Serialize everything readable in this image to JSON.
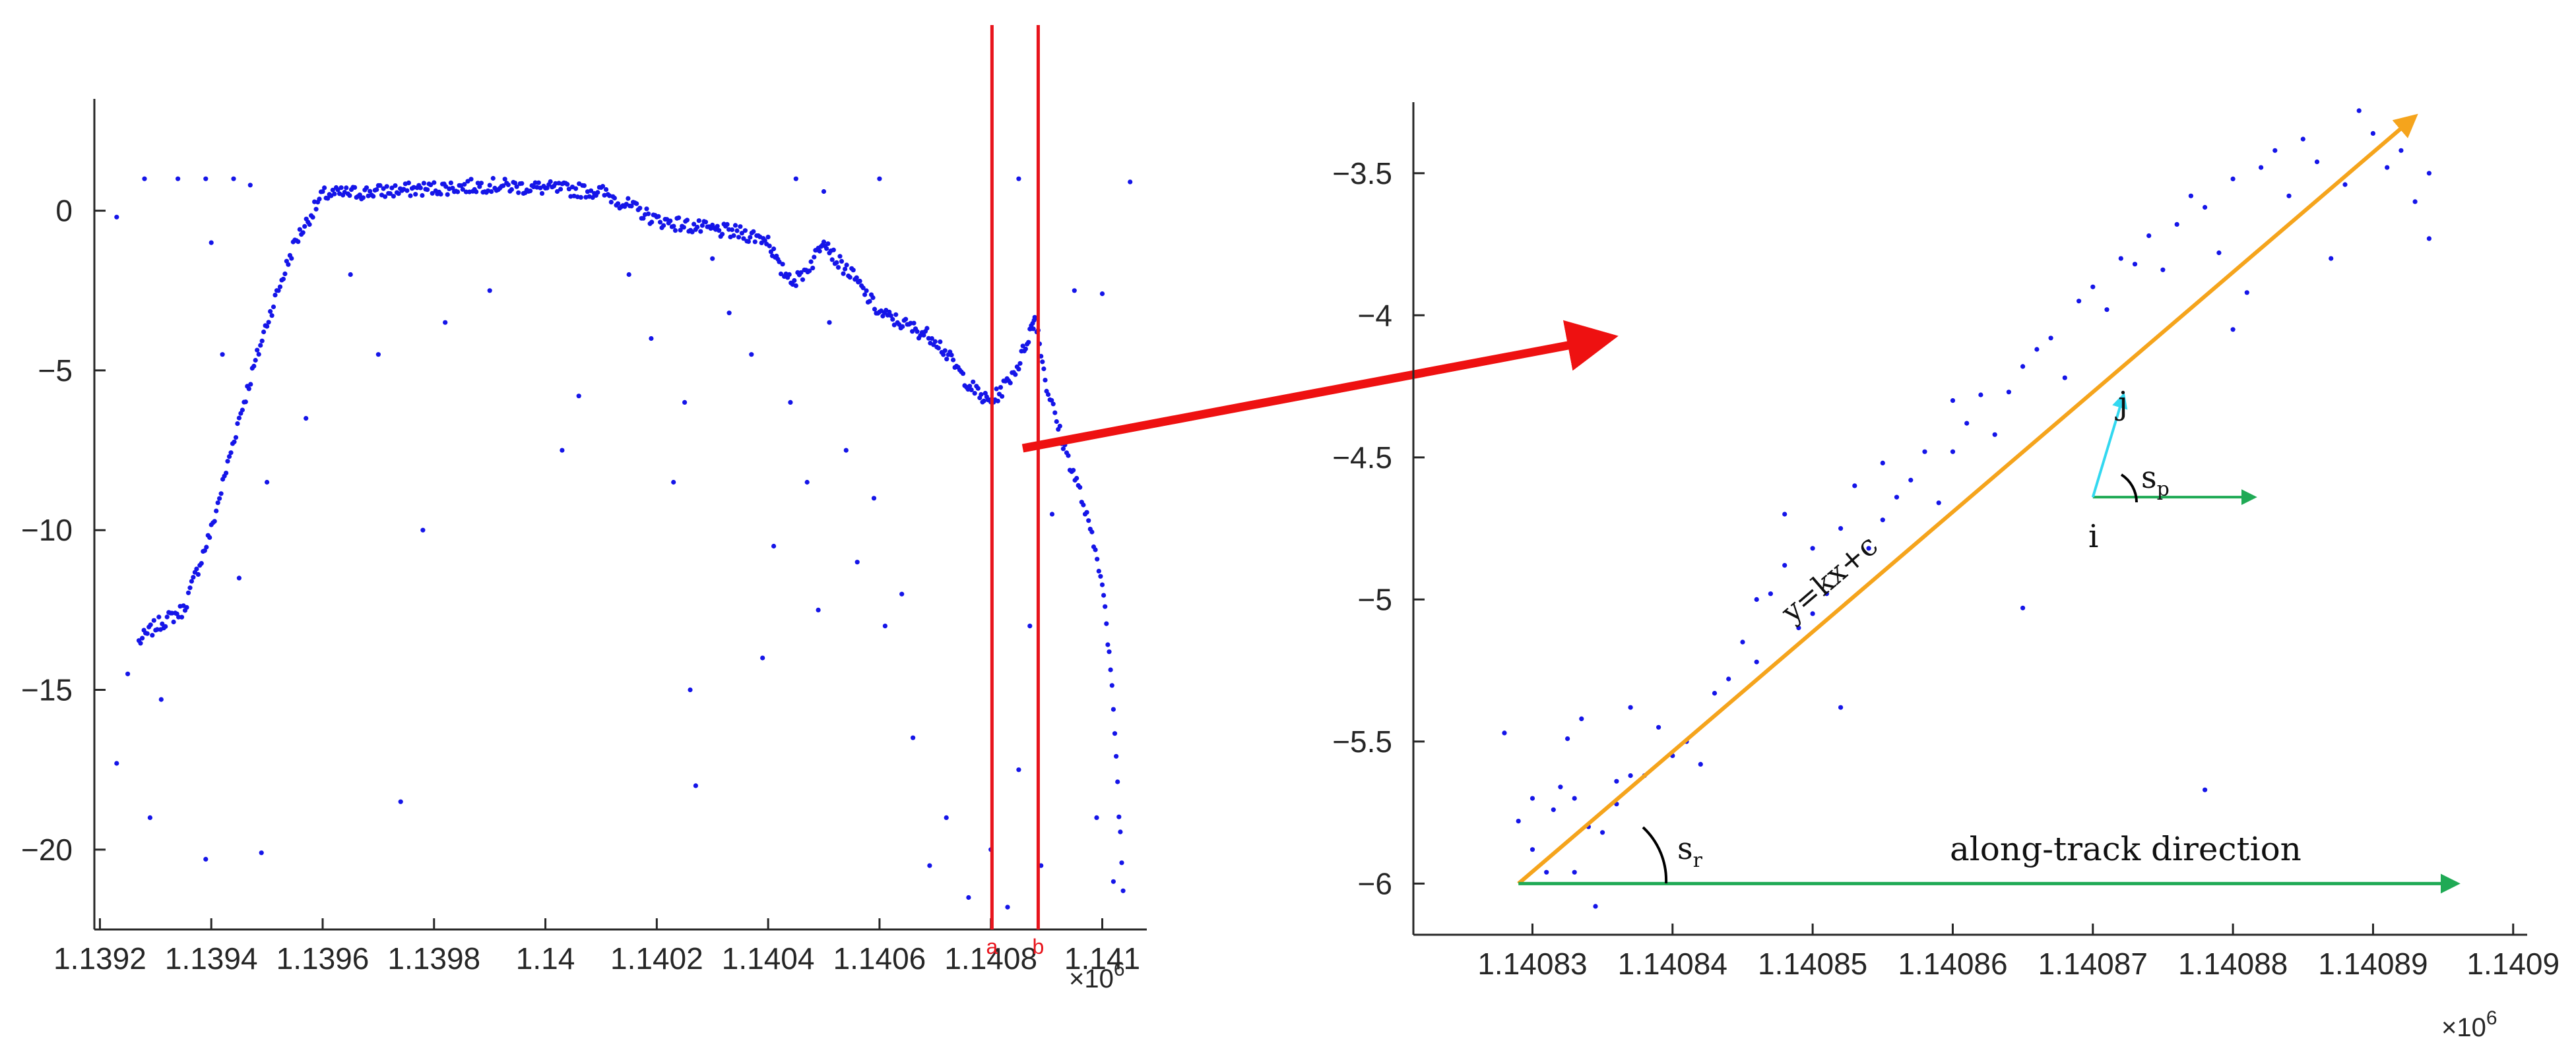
{
  "chart_data": [
    {
      "type": "scatter",
      "panel": "left",
      "x_tick_labels": [
        "1.1392",
        "1.1394",
        "1.1396",
        "1.1398",
        "1.14",
        "1.1402",
        "1.1404",
        "1.1406",
        "1.1408",
        "1.141"
      ],
      "x_ticks": [
        1139200,
        1139400,
        1139600,
        1139800,
        1140000,
        1140200,
        1140400,
        1140600,
        1140800,
        1141000
      ],
      "x_exponent_label": "×10",
      "x_exponent_power": "6",
      "xlim": [
        1139190,
        1141080
      ],
      "y_tick_labels": [
        "0",
        "-5",
        "-10",
        "-15",
        "-20"
      ],
      "y_ticks": [
        0,
        -5,
        -10,
        -15,
        -20
      ],
      "ylim": [
        -22.5,
        3.5
      ],
      "grid": false,
      "profile_x": [
        1139270,
        1139300,
        1139350,
        1139400,
        1139450,
        1139500,
        1139550,
        1139600,
        1139700,
        1139800,
        1139900,
        1140000,
        1140100,
        1140200,
        1140300,
        1140350,
        1140400,
        1140420,
        1140450,
        1140480,
        1140500,
        1140520,
        1140550,
        1140600,
        1140650,
        1140700,
        1140750,
        1140780,
        1140800,
        1140820,
        1140850,
        1140870,
        1140880,
        1140900,
        1140930,
        1140960,
        1141000,
        1141020,
        1141040
      ],
      "profile_y": [
        -13.5,
        -13.0,
        -12.5,
        -10,
        -6.5,
        -3.5,
        -1.0,
        0.5,
        0.6,
        0.7,
        0.8,
        0.7,
        0.6,
        -0.3,
        -0.6,
        -0.7,
        -0.9,
        -1.8,
        -2.2,
        -1.6,
        -0.8,
        -1.5,
        -2.0,
        -3.2,
        -3.6,
        -4.0,
        -5.2,
        -5.8,
        -6.0,
        -5.6,
        -4.8,
        -3.8,
        -3.3,
        -5.5,
        -7.3,
        -8.8,
        -11.5,
        -15.5,
        -22.0
      ],
      "noise_points": [
        [
          1139230,
          -0.2
        ],
        [
          1139280,
          1.0
        ],
        [
          1139340,
          1.0
        ],
        [
          1139390,
          1.0
        ],
        [
          1139440,
          1.0
        ],
        [
          1139470,
          0.8
        ],
        [
          1139230,
          -17.3
        ],
        [
          1139290,
          -19.0
        ],
        [
          1139390,
          -20.3
        ],
        [
          1139490,
          -20.1
        ],
        [
          1139250,
          -14.5
        ],
        [
          1139310,
          -15.3
        ],
        [
          1139450,
          -11.5
        ],
        [
          1139400,
          -1.0
        ],
        [
          1139420,
          -4.5
        ],
        [
          1139500,
          -8.5
        ],
        [
          1139570,
          -6.5
        ],
        [
          1139650,
          -2.0
        ],
        [
          1139700,
          -4.5
        ],
        [
          1139740,
          -18.5
        ],
        [
          1139780,
          -10.0
        ],
        [
          1139820,
          -3.5
        ],
        [
          1139900,
          -2.5
        ],
        [
          1140030,
          -7.5
        ],
        [
          1140060,
          -5.8
        ],
        [
          1140150,
          -2.0
        ],
        [
          1140190,
          -4.0
        ],
        [
          1140230,
          -8.5
        ],
        [
          1140250,
          -6.0
        ],
        [
          1140260,
          -15.0
        ],
        [
          1140270,
          -18.0
        ],
        [
          1140300,
          -1.5
        ],
        [
          1140330,
          -3.2
        ],
        [
          1140370,
          -4.5
        ],
        [
          1140390,
          -14.0
        ],
        [
          1140410,
          -10.5
        ],
        [
          1140440,
          -6.0
        ],
        [
          1140470,
          -8.5
        ],
        [
          1140490,
          -12.5
        ],
        [
          1140510,
          -3.5
        ],
        [
          1140540,
          -7.5
        ],
        [
          1140560,
          -11.0
        ],
        [
          1140590,
          -9.0
        ],
        [
          1140610,
          -13.0
        ],
        [
          1140640,
          -12.0
        ],
        [
          1140660,
          -16.5
        ],
        [
          1140690,
          -20.5
        ],
        [
          1140720,
          -19.0
        ],
        [
          1140760,
          -21.5
        ],
        [
          1140800,
          -20.0
        ],
        [
          1140830,
          -21.8
        ],
        [
          1140850,
          -17.5
        ],
        [
          1140870,
          -13.0
        ],
        [
          1140890,
          -20.5
        ],
        [
          1140910,
          -9.5
        ],
        [
          1140950,
          -2.5
        ],
        [
          1140990,
          -19.0
        ],
        [
          1141020,
          -21.0
        ],
        [
          1141050,
          0.9
        ],
        [
          1141000,
          -2.6
        ],
        [
          1140600,
          1.0
        ],
        [
          1140450,
          1.0
        ],
        [
          1140500,
          0.6
        ],
        [
          1140850,
          1.0
        ]
      ],
      "markers": [
        {
          "label": "a",
          "x": 1140802
        },
        {
          "label": "b",
          "x": 1140885
        }
      ]
    },
    {
      "type": "scatter",
      "panel": "right",
      "x_tick_labels": [
        "1.14083",
        "1.14084",
        "1.14085",
        "1.14086",
        "1.14087",
        "1.14088",
        "1.14089",
        "1.1409"
      ],
      "x_ticks": [
        1140830,
        1140840,
        1140850,
        1140860,
        1140870,
        1140880,
        1140890,
        1140900
      ],
      "x_exponent_label": "×10",
      "x_exponent_power": "6",
      "xlim": [
        1140821.5,
        1140901
      ],
      "y_tick_labels": [
        "-3.5",
        "-4",
        "-4.5",
        "-5",
        "-5.5",
        "-6"
      ],
      "y_ticks": [
        -3.5,
        -4,
        -4.5,
        -5,
        -5.5,
        -6
      ],
      "ylim": [
        -6.18,
        -3.25
      ],
      "grid": false,
      "fit_line": {
        "label": "y=kx+c",
        "x": [
          1140829,
          1140893
        ],
        "y": [
          -6.0,
          -3.3
        ]
      },
      "along_track": {
        "label": "along-track direction",
        "x": [
          1140829,
          1140896
        ],
        "y": [
          -6.0,
          -6.0
        ]
      },
      "angle_labels": {
        "sr_main": "s",
        "sr_sub": "r",
        "sp_main": "s",
        "sp_sub": "p"
      },
      "points_ij": {
        "i": "i",
        "j": "j",
        "i_x": 1140870,
        "i_y": -4.64,
        "j_x": 1140872.2,
        "j_y": -4.28
      },
      "points": [
        [
          1140828,
          -5.47
        ],
        [
          1140829,
          -5.78
        ],
        [
          1140830,
          -5.7
        ],
        [
          1140831,
          -5.96
        ],
        [
          1140831.5,
          -5.74
        ],
        [
          1140832,
          -5.66
        ],
        [
          1140832.5,
          -5.49
        ],
        [
          1140833,
          -5.7
        ],
        [
          1140833.5,
          -5.42
        ],
        [
          1140834,
          -5.8
        ],
        [
          1140835,
          -5.82
        ],
        [
          1140836,
          -5.64
        ],
        [
          1140837,
          -5.38
        ],
        [
          1140837,
          -5.62
        ],
        [
          1140838,
          -5.62
        ],
        [
          1140839,
          -5.45
        ],
        [
          1140840,
          -5.55
        ],
        [
          1140841,
          -5.5
        ],
        [
          1140842,
          -5.58
        ],
        [
          1140843,
          -5.33
        ],
        [
          1140844,
          -5.28
        ],
        [
          1140845,
          -5.15
        ],
        [
          1140846,
          -5.0
        ],
        [
          1140846,
          -5.22
        ],
        [
          1140847,
          -4.98
        ],
        [
          1140848,
          -4.88
        ],
        [
          1140848,
          -4.7
        ],
        [
          1140849,
          -5.1
        ],
        [
          1140850,
          -5.05
        ],
        [
          1140850,
          -4.82
        ],
        [
          1140851,
          -4.98
        ],
        [
          1140852,
          -4.75
        ],
        [
          1140852,
          -5.38
        ],
        [
          1140853,
          -4.6
        ],
        [
          1140854,
          -4.82
        ],
        [
          1140855,
          -4.72
        ],
        [
          1140855,
          -4.52
        ],
        [
          1140856,
          -4.64
        ],
        [
          1140857,
          -4.58
        ],
        [
          1140858,
          -4.48
        ],
        [
          1140859,
          -4.66
        ],
        [
          1140860,
          -4.48
        ],
        [
          1140860,
          -4.3
        ],
        [
          1140861,
          -4.38
        ],
        [
          1140862,
          -4.28
        ],
        [
          1140863,
          -4.42
        ],
        [
          1140864,
          -4.27
        ],
        [
          1140865,
          -4.18
        ],
        [
          1140865,
          -5.03
        ],
        [
          1140866,
          -4.12
        ],
        [
          1140867,
          -4.08
        ],
        [
          1140868,
          -4.22
        ],
        [
          1140869,
          -3.95
        ],
        [
          1140870,
          -3.9
        ],
        [
          1140871,
          -3.98
        ],
        [
          1140872,
          -3.8
        ],
        [
          1140873,
          -3.82
        ],
        [
          1140874,
          -3.72
        ],
        [
          1140875,
          -3.84
        ],
        [
          1140876,
          -3.68
        ],
        [
          1140877,
          -3.58
        ],
        [
          1140878,
          -3.62
        ],
        [
          1140878,
          -5.67
        ],
        [
          1140879,
          -3.78
        ],
        [
          1140880,
          -3.52
        ],
        [
          1140880,
          -4.05
        ],
        [
          1140881,
          -3.92
        ],
        [
          1140882,
          -3.48
        ],
        [
          1140883,
          -3.42
        ],
        [
          1140884,
          -3.58
        ],
        [
          1140885,
          -3.38
        ],
        [
          1140886,
          -3.46
        ],
        [
          1140887,
          -3.8
        ],
        [
          1140888,
          -3.54
        ],
        [
          1140889,
          -3.28
        ],
        [
          1140890,
          -3.36
        ],
        [
          1140891,
          -3.48
        ],
        [
          1140892,
          -3.42
        ],
        [
          1140893,
          -3.6
        ],
        [
          1140894,
          -3.5
        ],
        [
          1140894,
          -3.73
        ],
        [
          1140834.5,
          -6.08
        ],
        [
          1140836,
          -5.72
        ],
        [
          1140830,
          -5.88
        ],
        [
          1140833,
          -5.96
        ]
      ]
    }
  ],
  "colors": {
    "points": "#1515e8",
    "marker_lines": "#e8141c",
    "callout_arrow": "#ee1111",
    "fit_line": "#f5a41c",
    "along_track": "#1faa55",
    "sp_vector": "#33d8f0"
  }
}
